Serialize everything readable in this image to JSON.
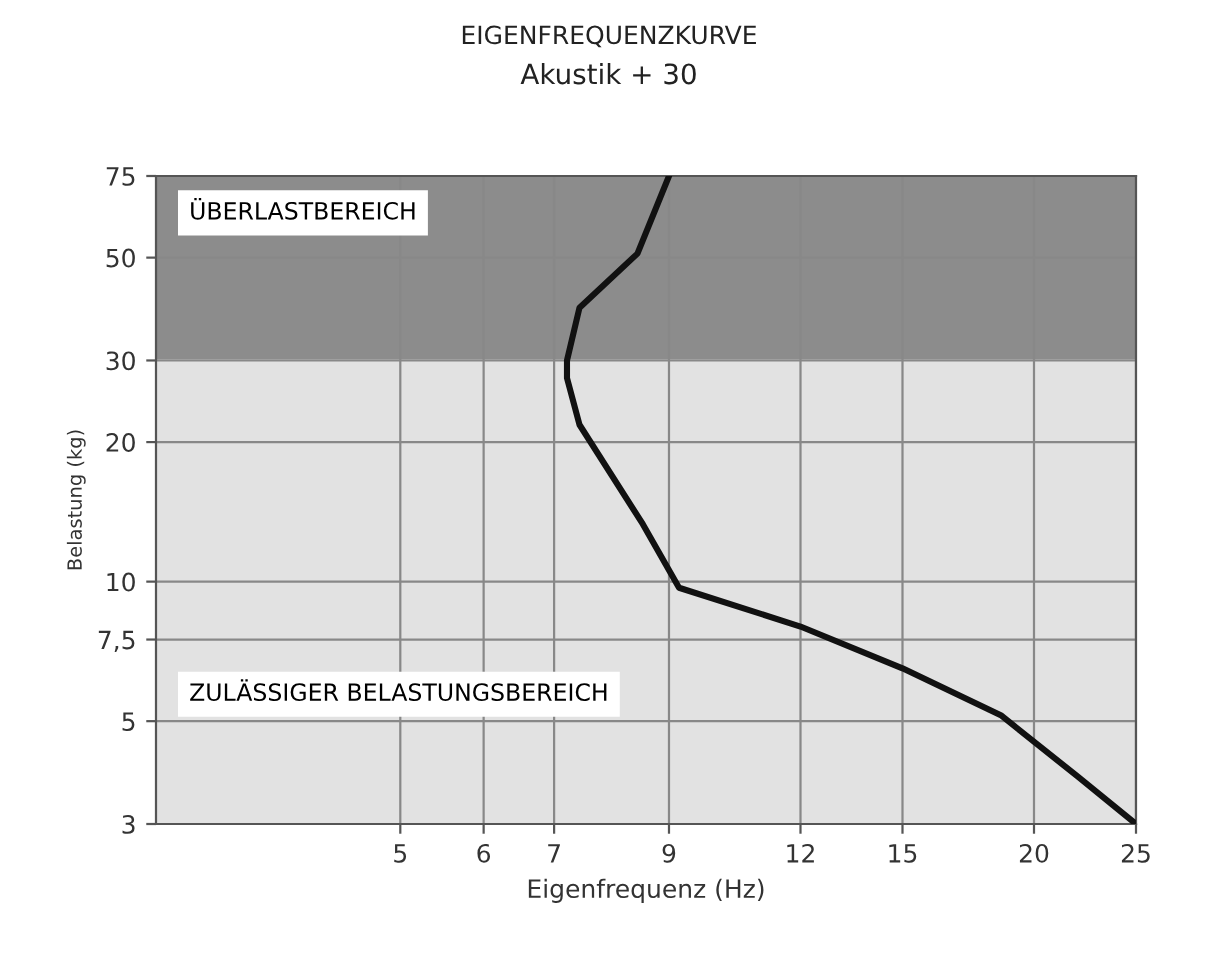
{
  "chart_data": {
    "type": "line",
    "title": "EIGENFREQUENZKURVE",
    "subtitle": "Akustik + 30",
    "xlabel": "Eigenfrequenz (Hz)",
    "ylabel": "Belastung (kg)",
    "series": [
      {
        "color": "#111111",
        "x": [
          9,
          8.4,
          7.4,
          7.2,
          7.2,
          7.4,
          8.5,
          9.2,
          12,
          15,
          18.6,
          22,
          25
        ],
        "values": [
          75,
          51,
          39,
          30,
          27.5,
          21.8,
          13.3,
          9.7,
          8,
          6.5,
          5.15,
          3.8,
          3
        ]
      }
    ],
    "log": "xy",
    "xlim": [
      2.93,
      25
    ],
    "ylim": [
      3,
      75
    ],
    "xticks": [
      5,
      6,
      7,
      9,
      12,
      15,
      20,
      25
    ],
    "yticks": [
      3,
      5,
      {
        "value": 7.5,
        "label": "7,5"
      },
      10,
      20,
      30,
      50,
      75
    ],
    "bands": [
      {
        "axis": "y",
        "from": 30,
        "to": 75,
        "label": "ÜBERLASTBEREICH",
        "color": "#8c8c8c"
      },
      {
        "axis": "y",
        "from": 3,
        "to": 30,
        "label": "ZULÄSSIGER BELASTUNGSBEREICH",
        "color": "#e2e2e2"
      }
    ],
    "grid": true,
    "marker": "none",
    "line_style": "solid",
    "legend": false
  }
}
